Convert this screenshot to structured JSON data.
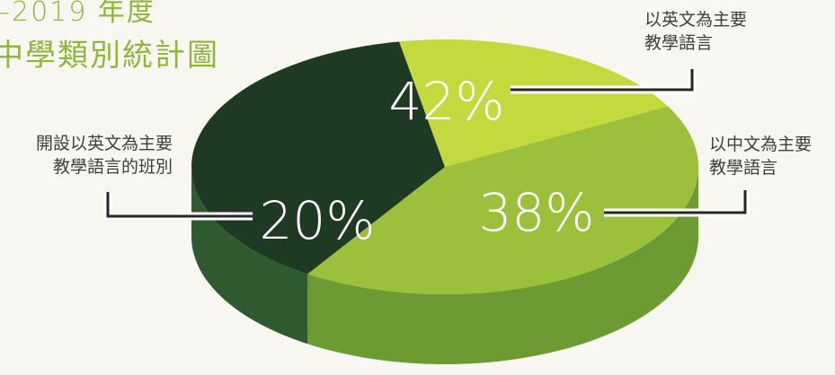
{
  "title": {
    "line1": "–2019 年度",
    "line2": "中學類別統計圖"
  },
  "chart_data": {
    "type": "pie",
    "three_d": true,
    "title": "–2019 年度 中學類別統計圖",
    "slices": [
      {
        "label_lines": [
          "以英文為主要",
          "教學語言"
        ],
        "value": 42,
        "display": "42%",
        "color": "#9cc03b"
      },
      {
        "label_lines": [
          "以中文為主要",
          "教學語言"
        ],
        "value": 38,
        "display": "38%",
        "color": "#1f3a22"
      },
      {
        "label_lines": [
          "開設以英文為主要",
          "教學語言的班別"
        ],
        "value": 20,
        "display": "20%",
        "color": "#c3d93d"
      }
    ],
    "side_colors": [
      "#6e9a34",
      "#2f5a2f",
      "#8eb23c"
    ]
  },
  "colors": {
    "background": "#f7f6f1",
    "title": "#8fb63a",
    "label_text": "#3e3e3e",
    "leader_line": "#262626"
  }
}
